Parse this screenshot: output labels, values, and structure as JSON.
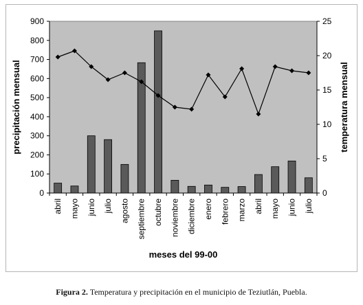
{
  "chart_data": {
    "type": "bar",
    "categories": [
      "abril",
      "mayo",
      "junio",
      "julio",
      "agosto",
      "septiembre",
      "octubre",
      "noviembre",
      "diciembre",
      "enero",
      "febrero",
      "marzo",
      "abril",
      "mayo",
      "junio",
      "julio"
    ],
    "series": [
      {
        "name": "precipitación mensual",
        "type": "bar",
        "axis": "left",
        "values": [
          52,
          37,
          300,
          280,
          150,
          683,
          850,
          67,
          35,
          42,
          30,
          34,
          97,
          138,
          168,
          80
        ]
      },
      {
        "name": "temperatura mensual",
        "type": "line",
        "axis": "right",
        "values": [
          19.8,
          20.7,
          18.4,
          16.5,
          17.5,
          16.2,
          14.2,
          12.5,
          12.2,
          17.2,
          14.0,
          18.1,
          11.5,
          18.4,
          17.8,
          17.5
        ]
      }
    ],
    "xlabel": "meses del 99-00",
    "ylabel": "precipitación mensual",
    "y2label": "temperatura mensual",
    "ylim": [
      0,
      900
    ],
    "y2lim": [
      0,
      25
    ],
    "yticks": [
      0,
      100,
      200,
      300,
      400,
      500,
      600,
      700,
      800,
      900
    ],
    "y2ticks": [
      0,
      5,
      10,
      15,
      20,
      25
    ],
    "colors": {
      "plot_bg": "#c0c0c0",
      "bar": "#5a5a5a",
      "line": "#000000"
    },
    "grid": false,
    "legend": "none"
  },
  "caption": {
    "label": "Figura 2.",
    "text": " Temperatura y precipitación en el municipio de Teziutlán, Puebla."
  }
}
